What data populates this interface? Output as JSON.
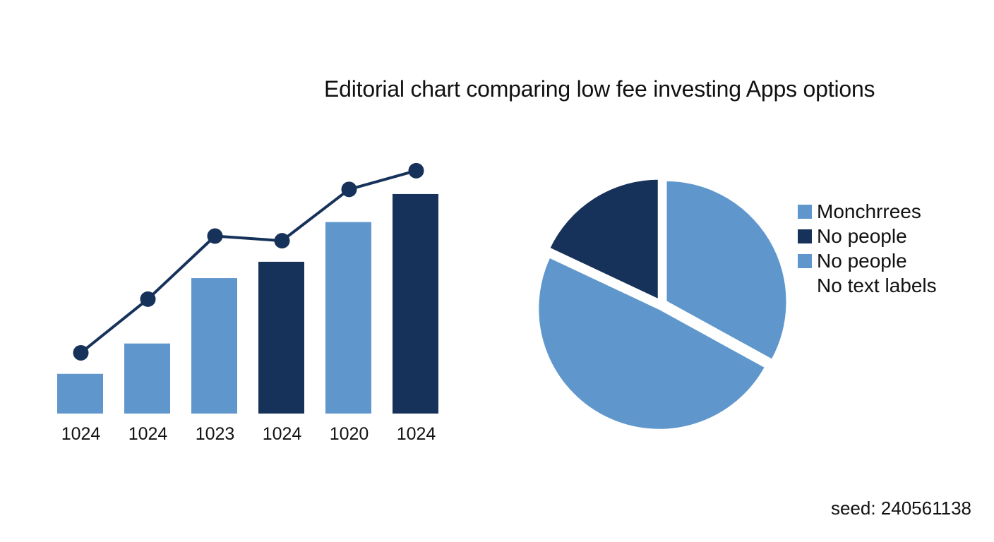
{
  "colors": {
    "light_blue": "#5f97cd",
    "dark_navy": "#17325a",
    "line": "#17325a"
  },
  "chart_data": [
    {
      "type": "bar",
      "title": "Editorial chart comparing low fee investing Apps options",
      "categories": [
        "1024",
        "1024",
        "1023",
        "1024",
        "1020",
        "1024"
      ],
      "series": [
        {
          "type": "bar",
          "values": [
            17,
            30,
            58,
            65,
            82,
            94
          ],
          "colors": [
            "#5f97cd",
            "#5f97cd",
            "#5f97cd",
            "#17325a",
            "#5f97cd",
            "#17325a"
          ]
        },
        {
          "type": "line",
          "values": [
            26,
            49,
            76,
            74,
            96,
            104
          ],
          "color": "#17325a"
        }
      ],
      "ylim": [
        0,
        110
      ],
      "grid": false,
      "xlabel": "",
      "ylabel": ""
    },
    {
      "type": "pie",
      "legend": {
        "placement": "right",
        "entries": [
          {
            "label": "Monchrrees",
            "color": "#5f97cd"
          },
          {
            "label": "No people",
            "color": "#17325a"
          },
          {
            "label": "No people",
            "color": "#5f97cd"
          },
          {
            "label": "No text labels",
            "color": ""
          }
        ]
      },
      "slices": [
        {
          "value": 33,
          "color": "#5f97cd"
        },
        {
          "value": 49,
          "color": "#5f97cd"
        },
        {
          "value": 18,
          "color": "#17325a"
        }
      ]
    }
  ],
  "footer": {
    "seed_text": "seed: 240561138"
  }
}
